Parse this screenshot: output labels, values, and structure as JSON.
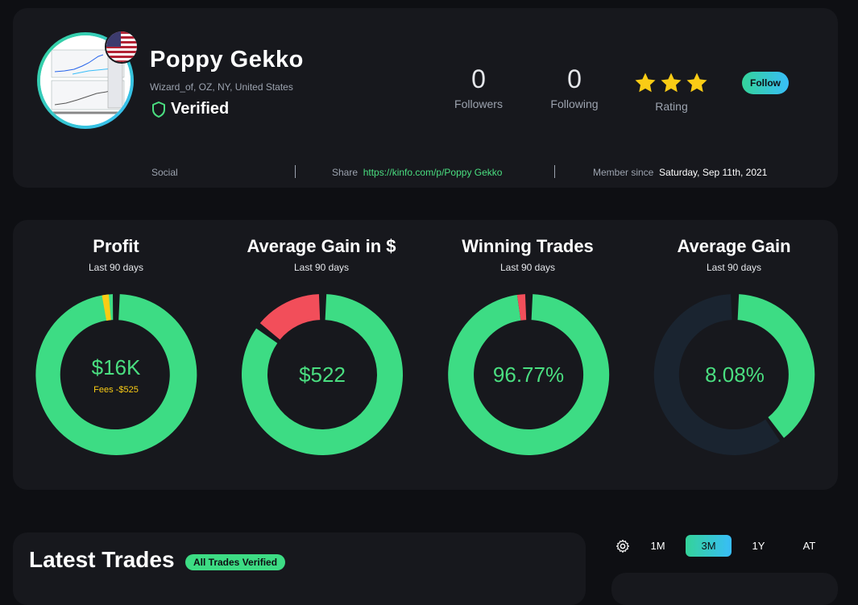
{
  "profile": {
    "name": "Poppy Gekko",
    "location": "Wizard_of, OZ, NY, United States",
    "verified_label": "Verified",
    "followers_count": "0",
    "followers_label": "Followers",
    "following_count": "0",
    "following_label": "Following",
    "rating_label": "Rating",
    "rating_stars": 3,
    "follow_label": "Follow",
    "social_label": "Social",
    "share_label": "Share",
    "share_url": "https://kinfo.com/p/Poppy Gekko",
    "member_since_label": "Member since",
    "member_since_date": "Saturday, Sep 11th, 2021"
  },
  "metrics": [
    {
      "title": "Profit",
      "subtitle": "Last 90 days",
      "value": "$16K",
      "fees": "Fees -$525"
    },
    {
      "title": "Average Gain in $",
      "subtitle": "Last 90 days",
      "value": "$522"
    },
    {
      "title": "Winning Trades",
      "subtitle": "Last 90 days",
      "value": "96.77%"
    },
    {
      "title": "Average Gain",
      "subtitle": "Last 90 days",
      "value": "8.08%"
    }
  ],
  "trades": {
    "title": "Latest Trades",
    "badge": "All Trades Verified"
  },
  "range": {
    "options": [
      "1M",
      "3M",
      "1Y",
      "AT"
    ],
    "selected": "3M"
  },
  "colors": {
    "green": "#3ddc84",
    "red": "#f24e5a",
    "yellow": "#facc15",
    "dark_track": "#1a2430",
    "gradient_start": "#34d399",
    "gradient_end": "#38bdf8"
  }
}
